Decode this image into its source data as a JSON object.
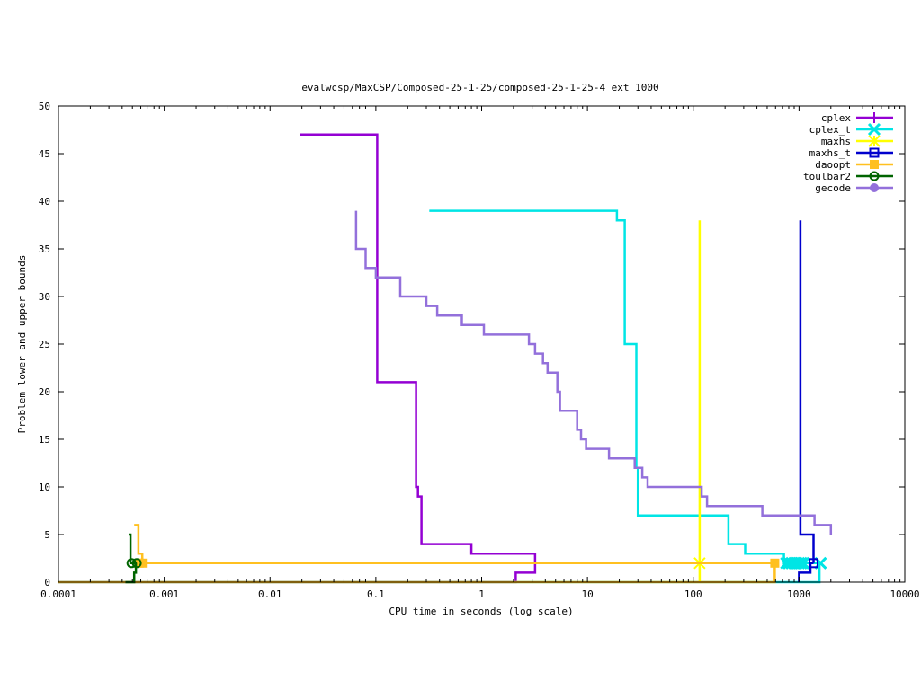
{
  "chart_data": {
    "type": "line",
    "title": "evalwcsp/MaxCSP/Composed-25-1-25/composed-25-1-25-4_ext_1000",
    "xlabel": "CPU time in seconds (log scale)",
    "ylabel": "Problem lower and upper bounds",
    "xscale": "log",
    "xlim": [
      0.0001,
      10000
    ],
    "ylim": [
      0,
      50
    ],
    "xticks": [
      {
        "value": 0.0001,
        "label": "0.0001"
      },
      {
        "value": 0.001,
        "label": "0.001"
      },
      {
        "value": 0.01,
        "label": "0.01"
      },
      {
        "value": 0.1,
        "label": "0.1"
      },
      {
        "value": 1,
        "label": "1"
      },
      {
        "value": 10,
        "label": "10"
      },
      {
        "value": 100,
        "label": "100"
      },
      {
        "value": 1000,
        "label": "1000"
      },
      {
        "value": 10000,
        "label": "10000"
      }
    ],
    "yticks": [
      {
        "value": 0,
        "label": "0"
      },
      {
        "value": 5,
        "label": "5"
      },
      {
        "value": 10,
        "label": "10"
      },
      {
        "value": 15,
        "label": "15"
      },
      {
        "value": 20,
        "label": "20"
      },
      {
        "value": 25,
        "label": "25"
      },
      {
        "value": 30,
        "label": "30"
      },
      {
        "value": 35,
        "label": "35"
      },
      {
        "value": 40,
        "label": "40"
      },
      {
        "value": 45,
        "label": "45"
      },
      {
        "value": 50,
        "label": "50"
      }
    ],
    "grid": false,
    "legend_position": "top-right",
    "series": [
      {
        "name": "cplex",
        "color": "#9400d3",
        "marker": "plus",
        "upper": [
          [
            0.019,
            47
          ],
          [
            0.103,
            47
          ],
          [
            0.103,
            21
          ],
          [
            0.24,
            21
          ],
          [
            0.24,
            10
          ],
          [
            0.25,
            10
          ],
          [
            0.25,
            9
          ],
          [
            0.27,
            9
          ],
          [
            0.27,
            4
          ],
          [
            0.8,
            4
          ],
          [
            0.8,
            3
          ],
          [
            3.2,
            3
          ],
          [
            3.2,
            2
          ]
        ],
        "lower": [
          [
            0.0001,
            0
          ],
          [
            2.1,
            0
          ],
          [
            2.1,
            1
          ],
          [
            3.2,
            1
          ],
          [
            3.2,
            2
          ]
        ],
        "markers": []
      },
      {
        "name": "cplex_t",
        "color": "#00e5e5",
        "marker": "x",
        "upper": [
          [
            0.32,
            39
          ],
          [
            19,
            39
          ],
          [
            19,
            38
          ],
          [
            22.5,
            38
          ],
          [
            22.5,
            25
          ],
          [
            29,
            25
          ],
          [
            29,
            12
          ],
          [
            30,
            12
          ],
          [
            30,
            7
          ],
          [
            215,
            7
          ],
          [
            215,
            4
          ],
          [
            310,
            4
          ],
          [
            310,
            3
          ],
          [
            720,
            3
          ],
          [
            720,
            2
          ],
          [
            1600,
            2
          ]
        ],
        "lower": [
          [
            0.0001,
            0
          ],
          [
            1560,
            0
          ],
          [
            1560,
            2
          ],
          [
            1600,
            2
          ]
        ],
        "markers": [
          [
            760,
            2
          ],
          [
            800,
            2
          ],
          [
            850,
            2
          ],
          [
            900,
            2
          ],
          [
            950,
            2
          ],
          [
            1000,
            2
          ],
          [
            1050,
            2
          ],
          [
            1100,
            2
          ],
          [
            1600,
            2
          ]
        ]
      },
      {
        "name": "maxhs",
        "color": "#ffff00",
        "marker": "star",
        "upper": [
          [
            115,
            38
          ],
          [
            115,
            2
          ]
        ],
        "lower": [
          [
            115,
            0
          ],
          [
            115,
            2
          ]
        ],
        "markers": [
          [
            115,
            2
          ]
        ]
      },
      {
        "name": "maxhs_t",
        "color": "#0000cd",
        "marker": "square",
        "upper": [
          [
            1030,
            38
          ],
          [
            1030,
            5
          ],
          [
            1370,
            5
          ],
          [
            1370,
            2
          ]
        ],
        "lower": [
          [
            1000,
            0
          ],
          [
            1000,
            1
          ],
          [
            1280,
            1
          ],
          [
            1280,
            2
          ],
          [
            1370,
            2
          ]
        ],
        "markers": [
          [
            1370,
            2
          ]
        ]
      },
      {
        "name": "daoopt",
        "color": "#ffc020",
        "marker": "filled-square",
        "upper": [
          [
            0.00052,
            6
          ],
          [
            0.00057,
            6
          ],
          [
            0.00057,
            3
          ],
          [
            0.00062,
            3
          ],
          [
            0.00062,
            2
          ],
          [
            590,
            2
          ]
        ],
        "lower": [
          [
            0.0001,
            0
          ],
          [
            590,
            0
          ],
          [
            590,
            2
          ]
        ],
        "markers": [
          [
            0.00058,
            2
          ],
          [
            0.00062,
            2
          ],
          [
            590,
            2
          ]
        ]
      },
      {
        "name": "toulbar2",
        "color": "#006400",
        "marker": "circle",
        "upper": [
          [
            0.00046,
            5
          ],
          [
            0.00048,
            5
          ],
          [
            0.00048,
            2
          ],
          [
            0.00055,
            2
          ]
        ],
        "lower": [
          [
            0.00043,
            0
          ],
          [
            0.00052,
            0
          ],
          [
            0.00052,
            1
          ],
          [
            0.00054,
            1
          ],
          [
            0.00054,
            2
          ],
          [
            0.00055,
            2
          ]
        ],
        "markers": [
          [
            0.00049,
            2
          ],
          [
            0.00055,
            2
          ]
        ]
      },
      {
        "name": "gecode",
        "color": "#9370db",
        "marker": "filled-circle",
        "upper": [
          [
            0.065,
            39
          ],
          [
            0.065,
            35
          ],
          [
            0.08,
            35
          ],
          [
            0.08,
            33
          ],
          [
            0.1,
            33
          ],
          [
            0.1,
            32
          ],
          [
            0.17,
            32
          ],
          [
            0.17,
            30
          ],
          [
            0.3,
            30
          ],
          [
            0.3,
            29
          ],
          [
            0.38,
            29
          ],
          [
            0.38,
            28
          ],
          [
            0.65,
            28
          ],
          [
            0.65,
            27
          ],
          [
            1.05,
            27
          ],
          [
            1.05,
            26
          ],
          [
            2.8,
            26
          ],
          [
            2.8,
            25
          ],
          [
            3.2,
            25
          ],
          [
            3.2,
            24
          ],
          [
            3.8,
            24
          ],
          [
            3.8,
            23
          ],
          [
            4.2,
            23
          ],
          [
            4.2,
            22
          ],
          [
            5.2,
            22
          ],
          [
            5.2,
            20
          ],
          [
            5.5,
            20
          ],
          [
            5.5,
            18
          ],
          [
            8,
            18
          ],
          [
            8,
            16
          ],
          [
            8.7,
            16
          ],
          [
            8.7,
            15
          ],
          [
            9.7,
            15
          ],
          [
            9.7,
            14
          ],
          [
            16,
            14
          ],
          [
            16,
            13
          ],
          [
            28,
            13
          ],
          [
            28,
            12
          ],
          [
            33,
            12
          ],
          [
            33,
            11
          ],
          [
            37,
            11
          ],
          [
            37,
            10
          ],
          [
            120,
            10
          ],
          [
            120,
            9
          ],
          [
            135,
            9
          ],
          [
            135,
            8
          ],
          [
            450,
            8
          ],
          [
            450,
            7
          ],
          [
            1400,
            7
          ],
          [
            1400,
            6
          ],
          [
            2000,
            6
          ],
          [
            2000,
            5
          ]
        ],
        "lower": [],
        "markers": []
      }
    ]
  }
}
